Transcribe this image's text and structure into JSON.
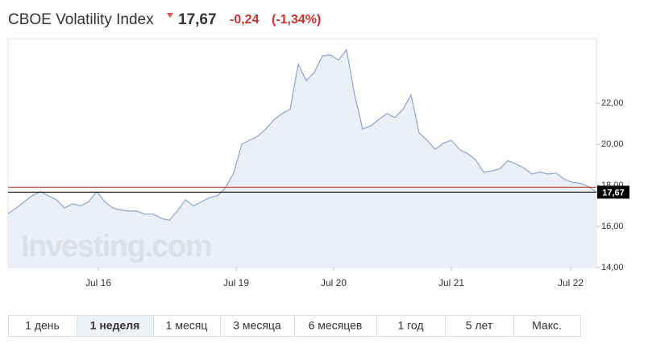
{
  "header": {
    "title": "CBOE Volatility Index",
    "price": "17,67",
    "change": "-0,24",
    "change_pct": "(-1,34%)"
  },
  "chart_data": {
    "type": "area",
    "watermark": "Investing.com",
    "x": [
      0,
      1,
      2,
      3,
      4,
      5,
      6,
      7,
      8,
      9,
      10,
      11,
      12,
      13,
      14,
      15,
      16,
      17,
      18,
      19,
      20,
      21,
      22,
      23,
      24,
      25,
      26,
      27,
      28,
      29,
      30,
      31,
      32,
      33,
      34,
      35,
      36,
      37,
      38,
      39,
      40,
      41,
      42,
      43,
      44,
      45,
      46,
      47,
      48,
      49,
      50,
      51,
      52,
      53,
      54,
      55,
      56,
      57,
      58,
      59,
      60,
      61,
      62,
      63,
      64,
      65,
      66,
      67,
      68,
      69,
      70,
      71,
      72,
      73
    ],
    "series": [
      {
        "color": "#8aa6cf",
        "fill": "#e6edf5",
        "values": [
          16.63,
          16.9,
          17.2,
          17.5,
          17.7,
          17.5,
          17.3,
          16.9,
          17.1,
          17.0,
          17.2,
          17.7,
          17.2,
          16.9,
          16.8,
          16.75,
          16.75,
          16.6,
          16.6,
          16.4,
          16.3,
          16.75,
          17.3,
          17.0,
          17.2,
          17.4,
          17.5,
          17.9,
          18.6,
          20.0,
          20.2,
          20.4,
          20.75,
          21.2,
          21.5,
          21.7,
          23.9,
          23.1,
          23.5,
          24.3,
          24.35,
          24.1,
          24.6,
          22.4,
          20.75,
          20.9,
          21.2,
          21.5,
          21.3,
          21.7,
          22.4,
          20.55,
          20.2,
          19.75,
          20.05,
          20.2,
          19.75,
          19.55,
          19.25,
          18.65,
          18.7,
          18.8,
          19.2,
          19.05,
          18.85,
          18.55,
          18.65,
          18.55,
          18.6,
          18.3,
          18.15,
          18.1,
          17.95,
          17.67
        ]
      }
    ],
    "xlim": [
      0,
      73
    ],
    "xticks": [
      {
        "value": 11.2,
        "label": "Jul 16"
      },
      {
        "value": 28.3,
        "label": "Jul 19"
      },
      {
        "value": 40.4,
        "label": "Jul 20"
      },
      {
        "value": 55,
        "label": "Jul 21"
      },
      {
        "value": 69.8,
        "label": "Jul 22"
      }
    ],
    "ylim": [
      14,
      25.14
    ],
    "yticks": [
      {
        "value": 14,
        "label": "14,00"
      },
      {
        "value": 16,
        "label": "16,00"
      },
      {
        "value": 18,
        "label": "18,00"
      },
      {
        "value": 20,
        "label": "20,00"
      },
      {
        "value": 22,
        "label": "22,00"
      }
    ],
    "reference_lines": [
      {
        "value": 17.91,
        "color": "#c0392b"
      },
      {
        "value": 17.67,
        "label": "17,67",
        "color": "#000000"
      }
    ]
  },
  "periods": [
    "1 день",
    "1 неделя",
    "1 месяц",
    "3 месяца",
    "6 месяцев",
    "1 год",
    "5 лет",
    "Макс."
  ],
  "active_period": 1
}
